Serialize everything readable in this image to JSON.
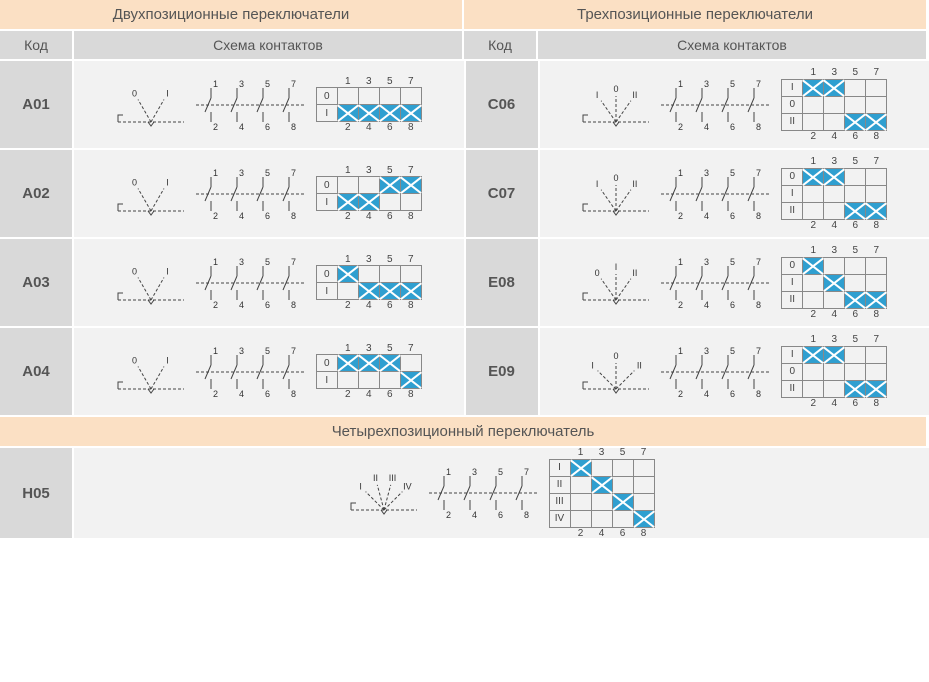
{
  "sections": {
    "two_pos": {
      "title": "Двухпозиционные переключатели"
    },
    "three_pos": {
      "title": "Трехпозиционные переключатели"
    },
    "four_pos": {
      "title": "Четырехпозиционный переключатель"
    }
  },
  "headers": {
    "code": "Код",
    "schema": "Схема контактов"
  },
  "colors": {
    "header_bg": "#fbe0c4",
    "subhead_bg": "#d9d9d9",
    "cell_bg": "#f2f2f2",
    "on": "#2f9fd0",
    "line": "#444"
  },
  "rotary": {
    "two_pos": {
      "positions": [
        "0",
        "I"
      ],
      "angles": [
        -30,
        30
      ]
    },
    "three_pos_c": {
      "positions": [
        "I",
        "0",
        "II"
      ],
      "angles": [
        -35,
        0,
        35
      ]
    },
    "three_pos_e08": {
      "positions": [
        "0",
        "I",
        "II"
      ],
      "angles": [
        -35,
        0,
        35
      ]
    },
    "three_pos_e09": {
      "positions": [
        "I",
        "0",
        "II"
      ],
      "angles": [
        -45,
        0,
        45
      ]
    },
    "four_pos": {
      "positions": [
        "I",
        "II",
        "III",
        "IV"
      ],
      "angles": [
        -45,
        -15,
        15,
        45
      ]
    }
  },
  "matrix_common": {
    "top_labels": [
      "1",
      "3",
      "5",
      "7"
    ],
    "bot_labels": [
      "2",
      "4",
      "6",
      "8"
    ]
  },
  "items": {
    "A01": {
      "rows": [
        "0",
        "I"
      ],
      "cells": [
        [
          0,
          0,
          0,
          0
        ],
        [
          1,
          1,
          1,
          1
        ]
      ]
    },
    "A02": {
      "rows": [
        "0",
        "I"
      ],
      "cells": [
        [
          0,
          0,
          1,
          1
        ],
        [
          1,
          1,
          0,
          0
        ]
      ]
    },
    "A03": {
      "rows": [
        "0",
        "I"
      ],
      "cells": [
        [
          1,
          0,
          0,
          0
        ],
        [
          0,
          1,
          1,
          1
        ]
      ]
    },
    "A04": {
      "rows": [
        "0",
        "I"
      ],
      "cells": [
        [
          1,
          1,
          1,
          0
        ],
        [
          0,
          0,
          0,
          1
        ]
      ]
    },
    "C06": {
      "rows": [
        "I",
        "0",
        "II"
      ],
      "cells": [
        [
          1,
          1,
          0,
          0
        ],
        [
          0,
          0,
          0,
          0
        ],
        [
          0,
          0,
          1,
          1
        ]
      ]
    },
    "C07": {
      "rows": [
        "0",
        "I",
        "II"
      ],
      "cells": [
        [
          1,
          1,
          0,
          0
        ],
        [
          0,
          0,
          0,
          0
        ],
        [
          0,
          0,
          1,
          1
        ]
      ]
    },
    "E08": {
      "rows": [
        "0",
        "I",
        "II"
      ],
      "cells": [
        [
          1,
          0,
          0,
          0
        ],
        [
          0,
          1,
          0,
          0
        ],
        [
          0,
          0,
          1,
          1
        ]
      ]
    },
    "E09": {
      "rows": [
        "I",
        "0",
        "II"
      ],
      "cells": [
        [
          1,
          1,
          0,
          0
        ],
        [
          0,
          0,
          0,
          0
        ],
        [
          0,
          0,
          1,
          1
        ]
      ]
    },
    "H05": {
      "rows": [
        "I",
        "II",
        "III",
        "IV"
      ],
      "cells": [
        [
          1,
          0,
          0,
          0
        ],
        [
          0,
          1,
          0,
          0
        ],
        [
          0,
          0,
          1,
          0
        ],
        [
          0,
          0,
          0,
          1
        ]
      ]
    }
  },
  "codes": {
    "A01": "A01",
    "A02": "A02",
    "A03": "A03",
    "A04": "A04",
    "C06": "C06",
    "C07": "C07",
    "E08": "E08",
    "E09": "E09",
    "H05": "H05"
  }
}
